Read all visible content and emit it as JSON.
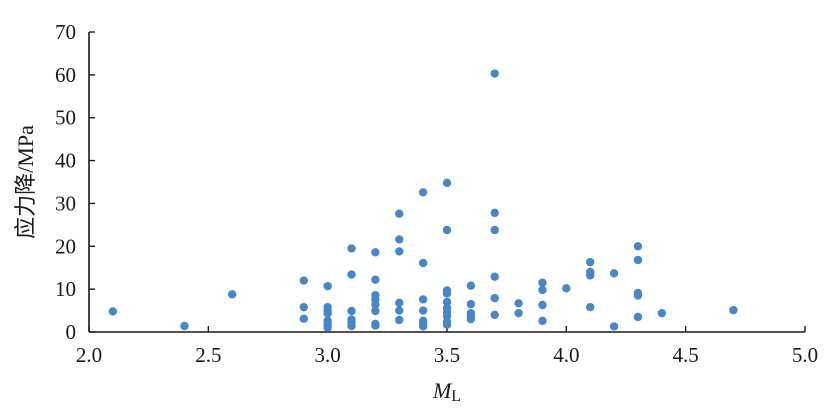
{
  "chart_data": {
    "type": "scatter",
    "title": "",
    "xlabel_main": "M",
    "xlabel_sub": "L",
    "ylabel": "应力降/MPa",
    "xlim": [
      2.0,
      5.0
    ],
    "ylim": [
      0,
      70
    ],
    "xticks": [
      "2.0",
      "2.5",
      "3.0",
      "3.5",
      "4.0",
      "4.5",
      "5.0"
    ],
    "yticks": [
      "0",
      "10",
      "20",
      "30",
      "40",
      "50",
      "60",
      "70"
    ],
    "grid": false,
    "legend": "none",
    "color": "#4a86c5",
    "points": [
      [
        2.1,
        4.8
      ],
      [
        2.4,
        1.4
      ],
      [
        2.6,
        8.8
      ],
      [
        2.9,
        12.0
      ],
      [
        2.9,
        5.8
      ],
      [
        2.9,
        3.1
      ],
      [
        3.0,
        10.7
      ],
      [
        3.0,
        5.8
      ],
      [
        3.0,
        4.9
      ],
      [
        3.0,
        4.3
      ],
      [
        3.0,
        2.6
      ],
      [
        3.0,
        1.7
      ],
      [
        3.0,
        1.0
      ],
      [
        3.1,
        19.5
      ],
      [
        3.1,
        13.4
      ],
      [
        3.1,
        4.9
      ],
      [
        3.1,
        2.9
      ],
      [
        3.1,
        2.3
      ],
      [
        3.1,
        1.4
      ],
      [
        3.2,
        18.6
      ],
      [
        3.2,
        12.2
      ],
      [
        3.2,
        8.6
      ],
      [
        3.2,
        7.6
      ],
      [
        3.2,
        6.4
      ],
      [
        3.2,
        4.9
      ],
      [
        3.2,
        1.9
      ],
      [
        3.2,
        1.5
      ],
      [
        3.3,
        27.6
      ],
      [
        3.3,
        21.6
      ],
      [
        3.3,
        18.8
      ],
      [
        3.3,
        6.8
      ],
      [
        3.3,
        5.0
      ],
      [
        3.3,
        2.8
      ],
      [
        3.4,
        32.6
      ],
      [
        3.4,
        16.1
      ],
      [
        3.4,
        7.6
      ],
      [
        3.4,
        5.0
      ],
      [
        3.4,
        2.6
      ],
      [
        3.4,
        1.9
      ],
      [
        3.4,
        1.3
      ],
      [
        3.5,
        34.8
      ],
      [
        3.5,
        23.8
      ],
      [
        3.5,
        9.7
      ],
      [
        3.5,
        9.0
      ],
      [
        3.5,
        7.0
      ],
      [
        3.5,
        5.6
      ],
      [
        3.5,
        4.6
      ],
      [
        3.5,
        3.7
      ],
      [
        3.5,
        2.4
      ],
      [
        3.5,
        1.7
      ],
      [
        3.6,
        10.8
      ],
      [
        3.6,
        6.5
      ],
      [
        3.6,
        4.4
      ],
      [
        3.6,
        3.6
      ],
      [
        3.6,
        3.0
      ],
      [
        3.7,
        60.3
      ],
      [
        3.7,
        27.8
      ],
      [
        3.7,
        23.8
      ],
      [
        3.7,
        12.9
      ],
      [
        3.7,
        7.9
      ],
      [
        3.7,
        4.0
      ],
      [
        3.8,
        6.7
      ],
      [
        3.8,
        4.4
      ],
      [
        3.9,
        11.5
      ],
      [
        3.9,
        9.8
      ],
      [
        3.9,
        6.3
      ],
      [
        3.9,
        2.6
      ],
      [
        4.0,
        10.2
      ],
      [
        4.1,
        16.3
      ],
      [
        4.1,
        14.0
      ],
      [
        4.1,
        13.2
      ],
      [
        4.1,
        5.8
      ],
      [
        4.2,
        13.7
      ],
      [
        4.2,
        1.3
      ],
      [
        4.3,
        20.0
      ],
      [
        4.3,
        16.8
      ],
      [
        4.3,
        9.1
      ],
      [
        4.3,
        8.5
      ],
      [
        4.3,
        3.5
      ],
      [
        4.4,
        4.4
      ],
      [
        4.7,
        5.1
      ]
    ]
  }
}
